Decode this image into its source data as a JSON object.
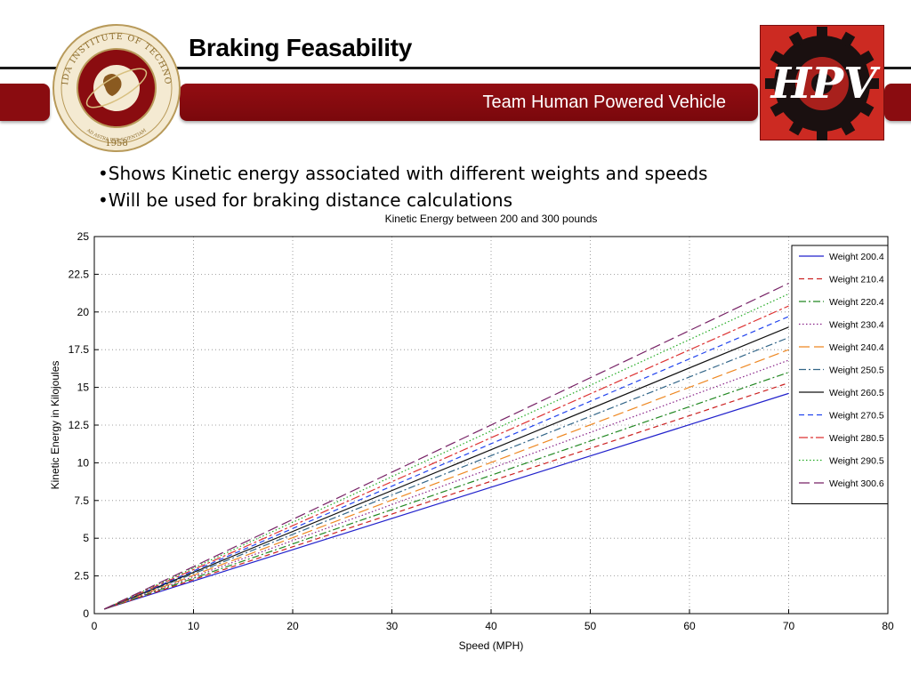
{
  "slide": {
    "title": "Braking Feasability",
    "subtitle": "Team Human Powered Vehicle",
    "bullets": [
      "•Shows Kinetic energy associated with different weights and speeds",
      "•Will be used for braking distance calculations"
    ]
  },
  "logos": {
    "seal_icon": "florida-tech-seal-icon",
    "hpv_icon": "hpv-gear-logo-icon",
    "seal_text": "FLORIDA INSTITUTE OF TECHNOLOGY",
    "seal_motto": "AD ASTRA PER SCIENTIAM",
    "seal_year": "1958",
    "hpv_text": "HPV"
  },
  "colors": {
    "accent": "#8a0c10",
    "text": "#000000",
    "banner_text": "#ffffff"
  },
  "chart_data": {
    "type": "line",
    "title": "Kinetic Energy between 200 and 300 pounds",
    "xlabel": "Speed (MPH)",
    "ylabel": "Kinetic Energy in Kilojoules",
    "xlim": [
      0,
      80
    ],
    "ylim": [
      0,
      25
    ],
    "xticks": [
      "0",
      "10",
      "20",
      "30",
      "40",
      "50",
      "60",
      "70",
      "80"
    ],
    "yticks": [
      "0",
      "2.5",
      "5",
      "7.5",
      "10",
      "12.5",
      "15",
      "17.5",
      "20",
      "22.5",
      "25"
    ],
    "grid": true,
    "legend_position": "top-right",
    "x": [
      1,
      70
    ],
    "series": [
      {
        "name": "Weight 200.4",
        "values": [
          0.3,
          14.6
        ],
        "color": "#2222cc",
        "dash": "solid"
      },
      {
        "name": "Weight 210.4",
        "values": [
          0.3,
          15.3
        ],
        "color": "#cc2222",
        "dash": "dashed"
      },
      {
        "name": "Weight 220.4",
        "values": [
          0.3,
          16.0
        ],
        "color": "#228822",
        "dash": "dashdot"
      },
      {
        "name": "Weight 230.4",
        "values": [
          0.3,
          16.8
        ],
        "color": "#882288",
        "dash": "dotted"
      },
      {
        "name": "Weight 240.4",
        "values": [
          0.3,
          17.5
        ],
        "color": "#ee8822",
        "dash": "longdash"
      },
      {
        "name": "Weight 250.5",
        "values": [
          0.3,
          18.3
        ],
        "color": "#336688",
        "dash": "dashdot"
      },
      {
        "name": "Weight 260.5",
        "values": [
          0.3,
          19.0
        ],
        "color": "#111111",
        "dash": "solid"
      },
      {
        "name": "Weight 270.5",
        "values": [
          0.3,
          19.7
        ],
        "color": "#2244ee",
        "dash": "dashed"
      },
      {
        "name": "Weight 280.5",
        "values": [
          0.3,
          20.4
        ],
        "color": "#dd3333",
        "dash": "dashdot2"
      },
      {
        "name": "Weight 290.5",
        "values": [
          0.3,
          21.2
        ],
        "color": "#22aa22",
        "dash": "dotted"
      },
      {
        "name": "Weight 300.6",
        "values": [
          0.3,
          21.9
        ],
        "color": "#772266",
        "dash": "longdash"
      }
    ]
  }
}
